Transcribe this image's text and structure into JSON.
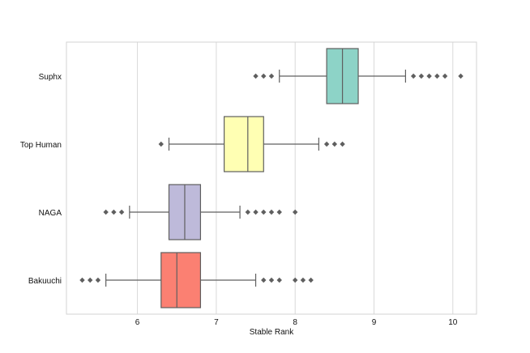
{
  "chart_data": {
    "type": "boxplot",
    "orientation": "horizontal",
    "xlabel": "Stable Rank",
    "ylabel": "",
    "xlim": [
      5.1,
      10.3
    ],
    "x_ticks": [
      6,
      7,
      8,
      9,
      10
    ],
    "grid": {
      "x": true,
      "y": false
    },
    "series": [
      {
        "name": "Suphx",
        "color": "#8dd3c7",
        "box": {
          "q1": 8.4,
          "median": 8.6,
          "q3": 8.8
        },
        "whisker": {
          "low": 7.8,
          "high": 9.4
        },
        "outliers": [
          7.5,
          7.6,
          7.7,
          9.5,
          9.6,
          9.7,
          9.8,
          9.9,
          10.1
        ]
      },
      {
        "name": "Top Human",
        "color": "#ffffb3",
        "box": {
          "q1": 7.1,
          "median": 7.4,
          "q3": 7.6
        },
        "whisker": {
          "low": 6.4,
          "high": 8.3
        },
        "outliers": [
          6.3,
          8.4,
          8.5,
          8.6
        ]
      },
      {
        "name": "NAGA",
        "color": "#bebada",
        "box": {
          "q1": 6.4,
          "median": 6.6,
          "q3": 6.8
        },
        "whisker": {
          "low": 5.9,
          "high": 7.3
        },
        "outliers": [
          5.6,
          5.7,
          5.8,
          7.4,
          7.5,
          7.6,
          7.7,
          7.8,
          8.0
        ]
      },
      {
        "name": "Bakuuchi",
        "color": "#fb8072",
        "box": {
          "q1": 6.3,
          "median": 6.5,
          "q3": 6.8
        },
        "whisker": {
          "low": 5.6,
          "high": 7.5
        },
        "outliers": [
          5.3,
          5.4,
          5.5,
          7.6,
          7.7,
          7.8,
          8.0,
          8.1,
          8.2
        ]
      }
    ]
  },
  "style": {
    "background": "#ffffff",
    "frame": "#d3d3d3",
    "grid": "#d9d9d9",
    "outline": "#5f5f5f",
    "text": "#111111"
  }
}
